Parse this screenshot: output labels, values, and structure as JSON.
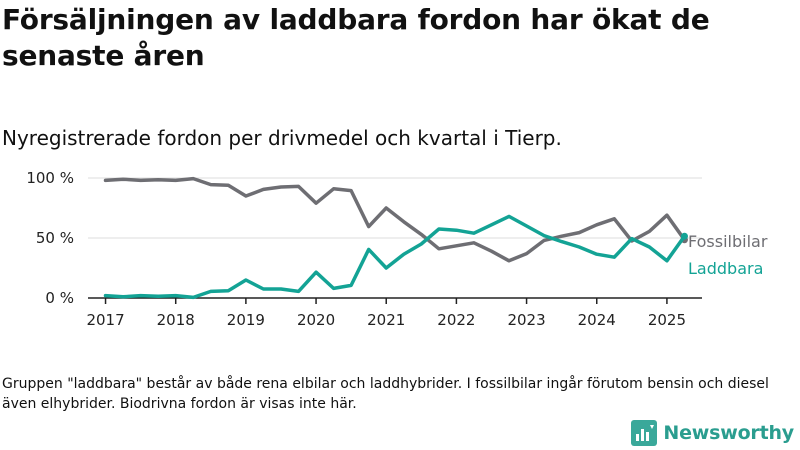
{
  "title": "Försäljningen av laddbara fordon har ökat de senaste åren",
  "subtitle": "Nyregistrerade fordon per drivmedel och kvartal i Tierp.",
  "footnote": "Gruppen \"laddbara\" består av både rena elbilar och laddhybrider. I fossilbilar ingår förutom bensin och diesel även elhybrider. Biodrivna fordon är visas inte här.",
  "brand": {
    "name": "Newsworthy",
    "logo_icon": "bar-chart-logo-icon",
    "color": "#3aa89a"
  },
  "chart_data": {
    "type": "line",
    "ylim": [
      0,
      100
    ],
    "xlim": [
      2017,
      2025.5
    ],
    "y_ticks": [
      {
        "value": 0,
        "label": "0 %"
      },
      {
        "value": 50,
        "label": "50 %"
      },
      {
        "value": 100,
        "label": "100 %"
      }
    ],
    "x_ticks": [
      {
        "value": 2017,
        "label": "2017"
      },
      {
        "value": 2018,
        "label": "2018"
      },
      {
        "value": 2019,
        "label": "2019"
      },
      {
        "value": 2020,
        "label": "2020"
      },
      {
        "value": 2021,
        "label": "2021"
      },
      {
        "value": 2022,
        "label": "2022"
      },
      {
        "value": 2023,
        "label": "2023"
      },
      {
        "value": 2024,
        "label": "2024"
      },
      {
        "value": 2025,
        "label": "2025"
      }
    ],
    "grid": "horizontal",
    "x": [
      2017.0,
      2017.25,
      2017.5,
      2017.75,
      2018.0,
      2018.25,
      2018.5,
      2018.75,
      2019.0,
      2019.25,
      2019.5,
      2019.75,
      2020.0,
      2020.25,
      2020.5,
      2020.75,
      2021.0,
      2021.25,
      2021.5,
      2021.75,
      2022.0,
      2022.25,
      2022.5,
      2022.75,
      2023.0,
      2023.25,
      2023.5,
      2023.75,
      2024.0,
      2024.25,
      2024.5,
      2024.75,
      2025.0,
      2025.25
    ],
    "series": [
      {
        "name": "Fossilbilar",
        "color": "#6e6e73",
        "values": [
          98,
          99,
          98,
          98.5,
          98,
          99.5,
          94.5,
          94,
          85,
          90.5,
          92.5,
          93,
          79,
          91,
          89.5,
          59.5,
          75,
          63.5,
          53,
          41,
          43.5,
          46,
          39,
          31,
          37,
          48,
          51.5,
          54.5,
          61,
          66,
          47.5,
          55.5,
          69,
          48.5
        ]
      },
      {
        "name": "Laddbara",
        "color": "#13a395",
        "values": [
          2,
          1,
          2,
          1.5,
          2,
          0.5,
          5.5,
          6,
          15,
          7.5,
          7.5,
          5.5,
          21.5,
          8,
          10.5,
          40.5,
          25,
          36.5,
          45,
          57.5,
          56.5,
          54,
          61,
          68,
          60,
          52,
          47,
          42.5,
          36.5,
          34,
          49.5,
          42.5,
          31,
          51.5
        ]
      }
    ]
  }
}
